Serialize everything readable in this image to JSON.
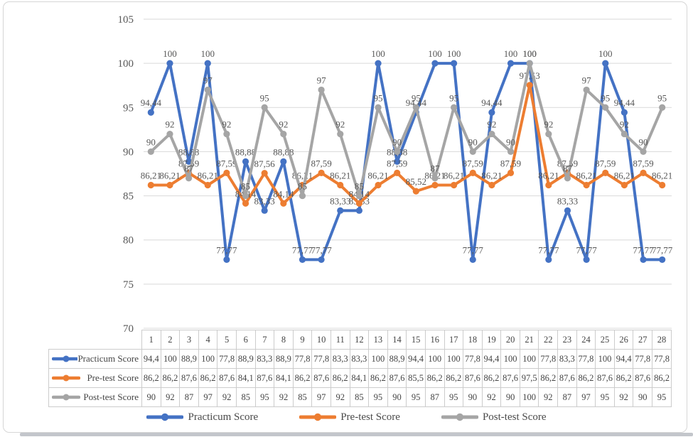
{
  "chart_data": {
    "type": "line",
    "title": "",
    "xlabel": "",
    "ylabel": "",
    "ylim": [
      70,
      105
    ],
    "yticks": [
      105,
      100,
      95,
      90,
      85,
      80,
      75,
      70
    ],
    "grid": true,
    "legend_position": "bottom",
    "categories": [
      "1",
      "2",
      "3",
      "4",
      "5",
      "6",
      "7",
      "8",
      "9",
      "10",
      "11",
      "12",
      "13",
      "14",
      "15",
      "16",
      "17",
      "18",
      "19",
      "20",
      "21",
      "22",
      "23",
      "24",
      "25",
      "26",
      "27",
      "28"
    ],
    "series": [
      {
        "name": "Practicum Score",
        "color": "#4472C4",
        "values": [
          94.44,
          100,
          88.88,
          100,
          77.77,
          88.88,
          83.33,
          88.88,
          77.77,
          77.77,
          83.33,
          83.33,
          100,
          88.88,
          94.44,
          100,
          100,
          77.77,
          94.44,
          100,
          100,
          77.77,
          83.33,
          77.77,
          100,
          94.44,
          77.77,
          77.77
        ],
        "point_labels": [
          "94,44",
          "100",
          "88,88",
          "100",
          "77,77",
          "88,88",
          "83,33",
          "88,88",
          "77,77",
          "77,77",
          "83,33",
          "83,33",
          "100",
          "88,88",
          "94,44",
          "100",
          "100",
          "77,77",
          "94,44",
          "100",
          "100",
          "77,77",
          "83,33",
          "77,77",
          "100",
          "94,44",
          "77,77",
          "77,77"
        ],
        "table_values": [
          "94,4",
          "100",
          "88,9",
          "100",
          "77,8",
          "88,9",
          "83,3",
          "88,9",
          "77,8",
          "77,8",
          "83,3",
          "83,3",
          "100",
          "88,9",
          "94,4",
          "100",
          "100",
          "77,8",
          "94,4",
          "100",
          "100",
          "77,8",
          "83,3",
          "77,8",
          "100",
          "94,4",
          "77,8",
          "77,8"
        ]
      },
      {
        "name": "Pre-test Score",
        "color": "#ED7D31",
        "values": [
          86.21,
          86.21,
          87.59,
          86.21,
          87.59,
          84.14,
          87.56,
          84.14,
          86.21,
          87.59,
          86.21,
          84.14,
          86.21,
          87.59,
          85.52,
          86.21,
          86.21,
          87.59,
          86.21,
          87.59,
          97.53,
          86.21,
          87.59,
          86.21,
          87.59,
          86.21,
          87.59,
          86.21
        ],
        "point_labels": [
          "86,21",
          "86,21",
          "87,59",
          "86,21",
          "87,59",
          "84,14",
          "87,56",
          "84,14",
          "86,21",
          "87,59",
          "86,21",
          "84,14",
          "86,21",
          "87,59",
          "85,52",
          "86,21",
          "86,21",
          "87,59",
          "86,21",
          "87,59",
          "97,53",
          "86,21",
          "87,59",
          "86,21",
          "87,59",
          "86,21",
          "87,59",
          "86,21"
        ],
        "table_values": [
          "86,2",
          "86,2",
          "87,6",
          "86,2",
          "87,6",
          "84,1",
          "87,6",
          "84,1",
          "86,2",
          "87,6",
          "86,2",
          "84,1",
          "86,2",
          "87,6",
          "85,5",
          "86,2",
          "86,2",
          "87,6",
          "86,2",
          "87,6",
          "97,5",
          "86,2",
          "87,6",
          "86,2",
          "87,6",
          "86,2",
          "87,6",
          "86,2"
        ]
      },
      {
        "name": "Post-test Score",
        "color": "#A5A5A5",
        "values": [
          90,
          92,
          87,
          97,
          92,
          85,
          95,
          92,
          85,
          97,
          92,
          85,
          95,
          90,
          95,
          87,
          95,
          90,
          92,
          90,
          100,
          92,
          87,
          97,
          95,
          92,
          90,
          95
        ],
        "point_labels": [
          "90",
          "92",
          "87",
          "97",
          "92",
          "85",
          "95",
          "92",
          "85",
          "97",
          "92",
          "85",
          "95",
          "90",
          "95",
          "87",
          "95",
          "90",
          "92",
          "90",
          "100",
          "92",
          "87",
          "97",
          "95",
          "92",
          "90",
          "95"
        ],
        "table_values": [
          "90",
          "92",
          "87",
          "97",
          "92",
          "85",
          "95",
          "92",
          "85",
          "97",
          "92",
          "85",
          "95",
          "90",
          "95",
          "87",
          "95",
          "90",
          "92",
          "90",
          "100",
          "92",
          "87",
          "97",
          "95",
          "92",
          "90",
          "95"
        ]
      }
    ],
    "colors": {
      "grid": "#d9d9d9",
      "axis_text": "#595959",
      "label_text": "#575757",
      "table_border": "#cccccc",
      "table_text": "#454545"
    }
  }
}
